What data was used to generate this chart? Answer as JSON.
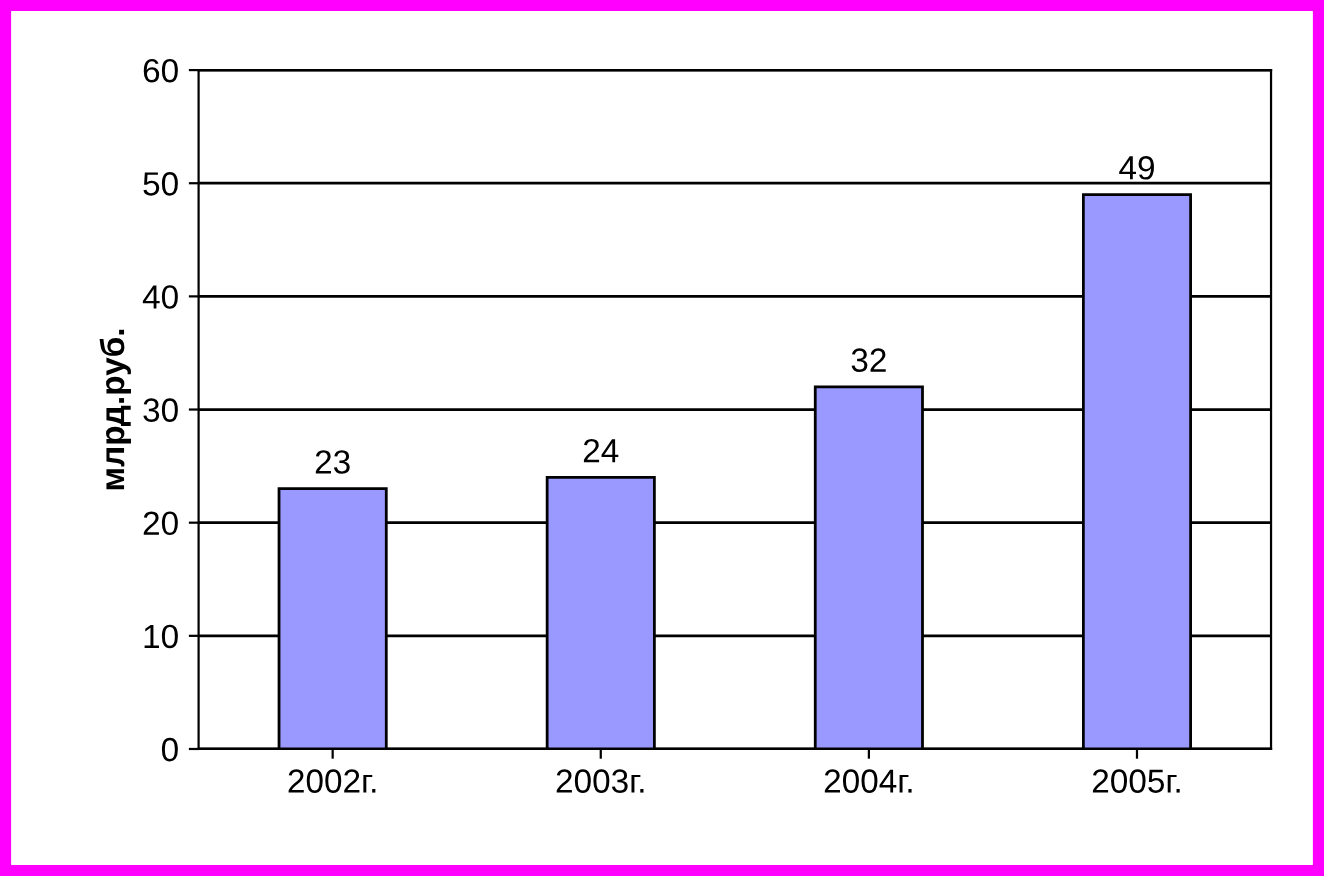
{
  "chart_data": {
    "type": "bar",
    "ylabel": "млрд.руб.",
    "categories": [
      "2002г.",
      "2003г.",
      "2004г.",
      "2005г."
    ],
    "values": [
      23,
      24,
      32,
      49
    ],
    "color": "#9999ff",
    "ylim": [
      0,
      60
    ],
    "yticks": [
      0,
      10,
      20,
      30,
      40,
      50,
      60
    ],
    "grid": "y",
    "data_labels": true
  }
}
